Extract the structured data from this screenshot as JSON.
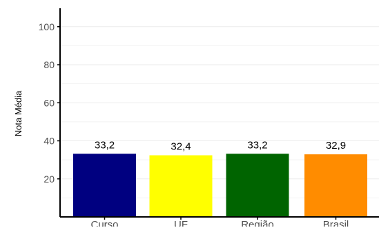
{
  "chart_data": {
    "type": "bar",
    "title": "",
    "xlabel": "",
    "ylabel": "Nota Média",
    "categories": [
      "Curso",
      "UF",
      "Região",
      "Brasil"
    ],
    "values": [
      33.2,
      32.4,
      33.2,
      32.9
    ],
    "value_labels": [
      "33,2",
      "32,4",
      "33,2",
      "32,9"
    ],
    "colors": [
      "#000080",
      "#ffff00",
      "#006400",
      "#ff8c00"
    ],
    "ylim": [
      0,
      110
    ],
    "yticks": [
      20,
      40,
      60,
      80,
      100
    ],
    "ytick_labels": [
      "20",
      "40",
      "60",
      "80",
      "100"
    ],
    "grid": true,
    "legend": "none"
  }
}
